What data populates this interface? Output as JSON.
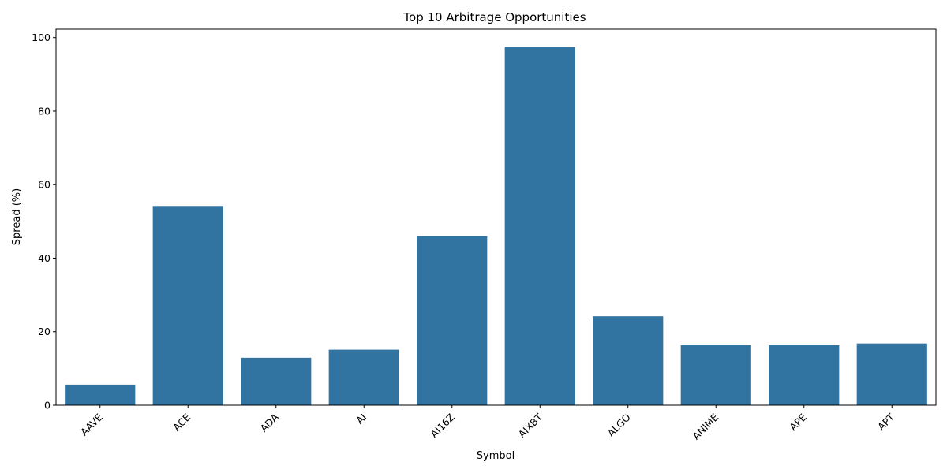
{
  "colors": {
    "bar": "#3274a1",
    "background": "#ffffff",
    "axis": "#000000"
  },
  "chart_data": {
    "type": "bar",
    "title": "Top 10 Arbitrage Opportunities",
    "xlabel": "Symbol",
    "ylabel": "Spread (%)",
    "categories": [
      "AAVE",
      "ACE",
      "ADA",
      "AI",
      "AI16Z",
      "AIXBT",
      "ALGO",
      "ANIME",
      "APE",
      "APT"
    ],
    "values": [
      5.6,
      54.2,
      12.9,
      15.1,
      46.0,
      97.4,
      24.2,
      16.3,
      16.3,
      16.8
    ],
    "ylim": [
      0,
      102.3
    ],
    "yticks": [
      0,
      20,
      40,
      60,
      80,
      100
    ],
    "ytick_labels": [
      "0",
      "20",
      "40",
      "60",
      "80",
      "100"
    ],
    "grid": false,
    "xtick_rotation_deg": 45
  }
}
